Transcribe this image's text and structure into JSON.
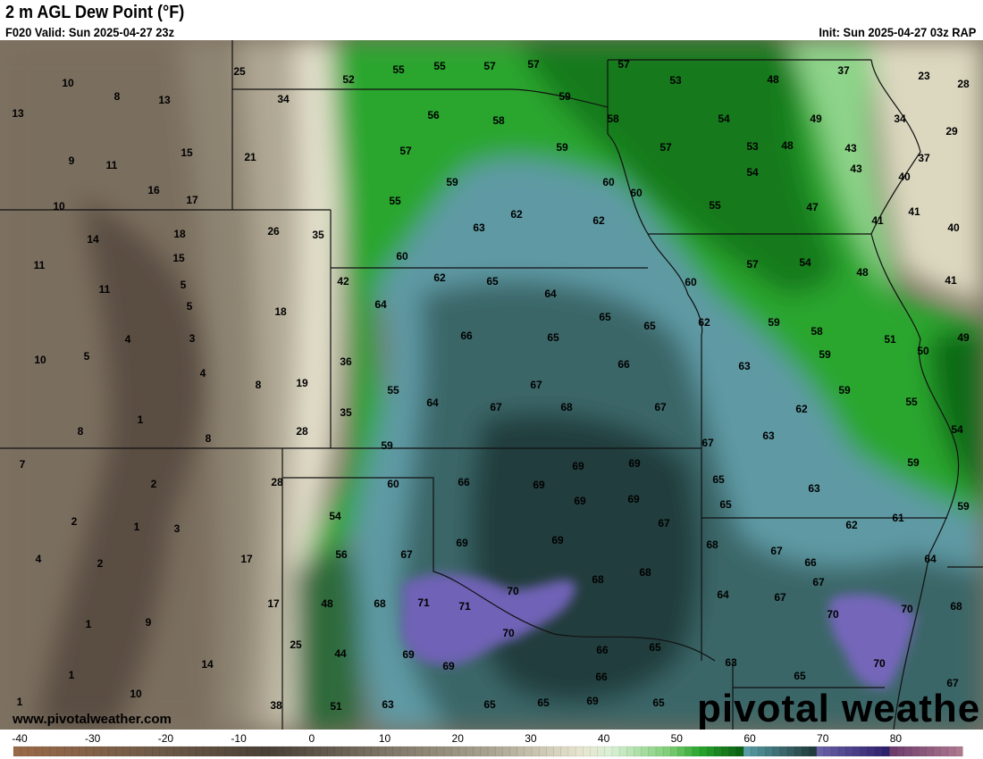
{
  "header": {
    "title": "2 m AGL Dew Point (°F)",
    "valid": "F020 Valid: Sun 2025-04-27 23z",
    "init": "Init: Sun 2025-04-27 03z RAP"
  },
  "footer": {
    "url": "www.pivotalweather.com",
    "logo": "pivotal weather"
  },
  "colorbar": {
    "min": -40,
    "max": 90,
    "ticks": [
      "-40",
      "-30",
      "-20",
      "-10",
      "0",
      "10",
      "20",
      "30",
      "40",
      "50",
      "60",
      "70",
      "80"
    ],
    "colors": {
      "brown": "#8a6448",
      "dark_brown": "#4a4036",
      "tan": "#a89e88",
      "cream": "#eeecd8",
      "light_green": "#a8e0a0",
      "green": "#2aa62e",
      "dark_green": "#0a5e12",
      "teal": "#5a9ea8",
      "dark_teal": "#1e3838",
      "purple": "#6a5ab0",
      "magenta": "#9a5a80"
    }
  },
  "values": [
    "10",
    "8",
    "13",
    "13",
    "9",
    "11",
    "15",
    "16",
    "17",
    "10",
    "25",
    "34",
    "21",
    "52",
    "55",
    "55",
    "57",
    "57",
    "57",
    "53",
    "48",
    "37",
    "23",
    "28",
    "56",
    "58",
    "59",
    "58",
    "54",
    "49",
    "34",
    "29",
    "57",
    "59",
    "57",
    "53",
    "48",
    "43",
    "37",
    "43",
    "40",
    "54",
    "59",
    "60",
    "60",
    "55",
    "62",
    "62",
    "55",
    "47",
    "41",
    "41",
    "40",
    "63",
    "14",
    "18",
    "26",
    "35",
    "11",
    "15",
    "60",
    "57",
    "54",
    "48",
    "41",
    "11",
    "5",
    "42",
    "62",
    "65",
    "64",
    "60",
    "5",
    "18",
    "64",
    "65",
    "65",
    "62",
    "59",
    "58",
    "51",
    "49",
    "4",
    "3",
    "66",
    "65",
    "50",
    "10",
    "5",
    "4",
    "8",
    "19",
    "36",
    "66",
    "63",
    "59",
    "67",
    "59",
    "55",
    "55",
    "64",
    "67",
    "68",
    "67",
    "62",
    "1",
    "35",
    "63",
    "54",
    "8",
    "8",
    "28",
    "59",
    "67",
    "7",
    "69",
    "69",
    "59",
    "2",
    "28",
    "60",
    "66",
    "69",
    "65",
    "63",
    "69",
    "69",
    "65",
    "59",
    "54",
    "2",
    "1",
    "3",
    "61",
    "67",
    "62",
    "69",
    "69",
    "68",
    "67",
    "4",
    "2",
    "17",
    "56",
    "67",
    "66",
    "64",
    "68",
    "67",
    "68",
    "70",
    "64",
    "67",
    "17",
    "48",
    "68",
    "71",
    "71",
    "70",
    "70",
    "68",
    "1",
    "9",
    "70",
    "25",
    "44",
    "69",
    "66",
    "65",
    "69",
    "14",
    "63",
    "70",
    "65",
    "1",
    "66",
    "67",
    "10",
    "1",
    "38",
    "51",
    "63",
    "65",
    "65",
    "69",
    "65"
  ]
}
